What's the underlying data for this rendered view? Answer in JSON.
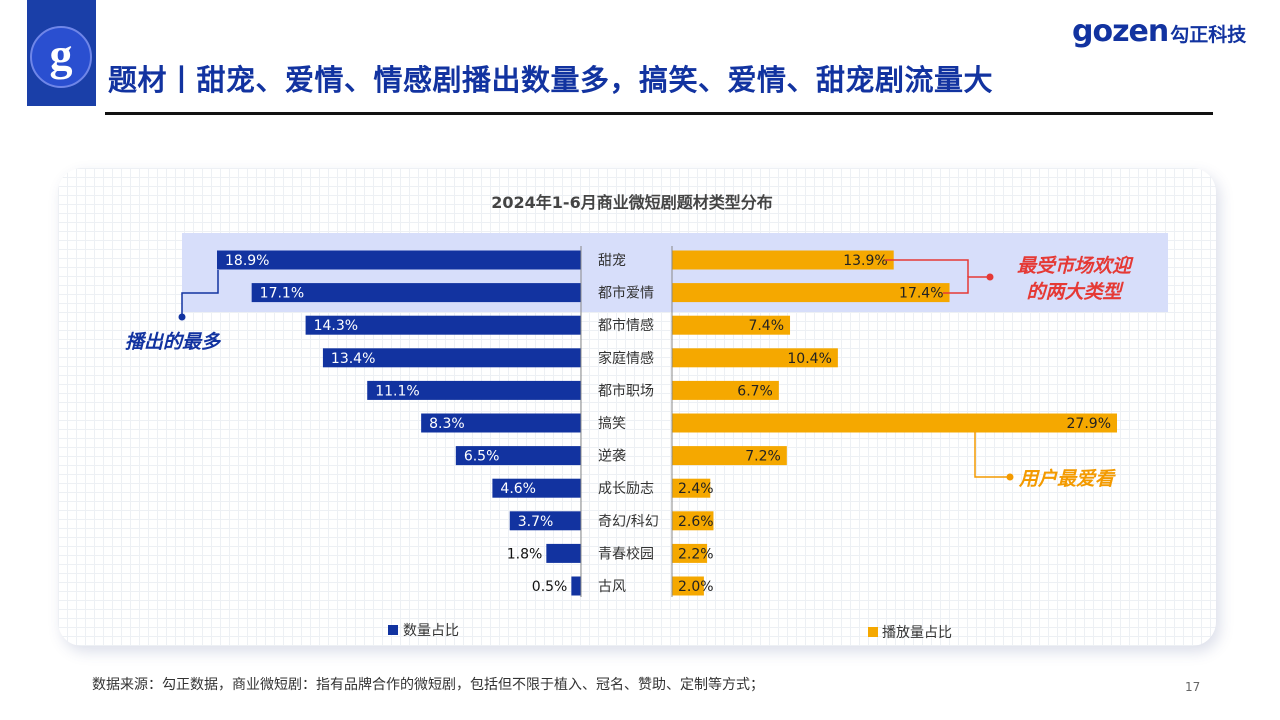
{
  "header": {
    "title": "题材丨甜宠、爱情、情感剧播出数量多，搞笑、爱情、甜宠剧流量大",
    "brand_name": "gozen",
    "brand_cn": "勾正科技",
    "logo_letter": "g"
  },
  "chart_data": {
    "type": "bar",
    "title": "2024年1-6月商业微短剧题材类型分布",
    "categories": [
      "甜宠",
      "都市爱情",
      "都市情感",
      "家庭情感",
      "都市职场",
      "搞笑",
      "逆袭",
      "成长励志",
      "奇幻/科幻",
      "青春校园",
      "古风"
    ],
    "series": [
      {
        "name": "数量占比",
        "values": [
          18.9,
          17.1,
          14.3,
          13.4,
          11.1,
          8.3,
          6.5,
          4.6,
          3.7,
          1.8,
          0.5
        ],
        "labels": [
          "18.9%",
          "17.1%",
          "14.3%",
          "13.4%",
          "11.1%",
          "8.3%",
          "6.5%",
          "4.6%",
          "3.7%",
          "1.8%",
          "0.5%"
        ],
        "color": "#1233a0"
      },
      {
        "name": "播放量占比",
        "values": [
          13.9,
          17.4,
          7.4,
          10.4,
          6.7,
          27.9,
          7.2,
          2.4,
          2.6,
          2.2,
          2.0
        ],
        "labels": [
          "13.9%",
          "17.4%",
          "7.4%",
          "10.4%",
          "6.7%",
          "27.9%",
          "7.2%",
          "2.4%",
          "2.6%",
          "2.2%",
          "2.0%"
        ],
        "color": "#f5a800"
      }
    ],
    "annotations": {
      "most_aired": "播出的最多",
      "market_fav_line1": "最受市场欢迎",
      "market_fav_line2": "的两大类型",
      "user_fav": "用户最爱看"
    },
    "colors": {
      "annotation_blue": "#1233a0",
      "annotation_red": "#e53935",
      "annotation_orange": "#f39a00",
      "highlight": "#d7defa"
    }
  },
  "footer": {
    "source": "数据来源：勾正数据，商业微短剧：指有品牌合作的微短剧，包括但不限于植入、冠名、赞助、定制等方式；",
    "page": "17"
  }
}
